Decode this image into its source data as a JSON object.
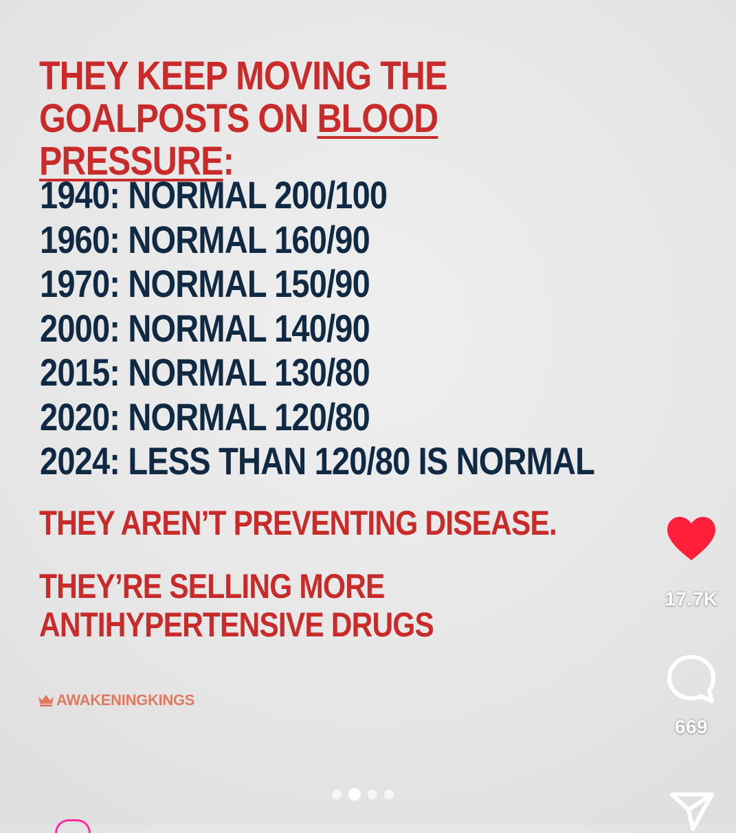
{
  "post": {
    "headline": {
      "line1": "THEY KEEP MOVING THE",
      "line2_prefix": "GOALPOSTS ON ",
      "line2_underlined": "BLOOD PRESSURE",
      "line2_suffix": ":"
    },
    "timeline": [
      "1940: NORMAL 200/100",
      "1960: NORMAL 160/90",
      "1970: NORMAL 150/90",
      "2000: NORMAL 140/90",
      "2015: NORMAL 130/80",
      "2020: NORMAL 120/80",
      "2024: LESS THAN 120/80 IS NORMAL"
    ],
    "statement1": "THEY AREN’T PREVENTING DISEASE.",
    "statement2_line1": "THEY’RE SELLING MORE",
    "statement2_line2": "ANTIHYPERTENSIVE DRUGS",
    "brand": "AWAKENINGKINGS"
  },
  "actions": {
    "like_count": "17.7K",
    "comment_count": "669"
  },
  "carousel": {
    "total": 4,
    "active_index": 1
  },
  "colors": {
    "headline_red": "#c92a2a",
    "body_navy": "#102a43",
    "brand_orange": "#e07a5f",
    "heart_red": "#ff1f3a",
    "accent_pink": "#ff2aa1"
  },
  "icons": {
    "like": "heart-icon",
    "comment": "comment-bubble-icon",
    "share": "send-icon",
    "brand": "crown-icon"
  }
}
